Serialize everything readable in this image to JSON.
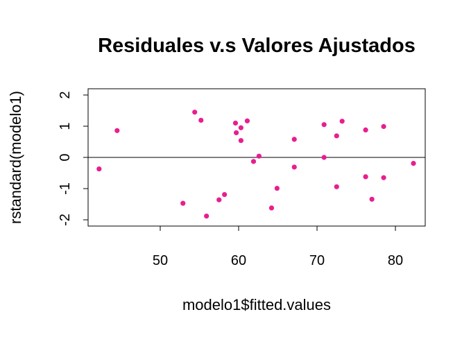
{
  "chart_data": {
    "type": "scatter",
    "title": "Residuales v.s Valores Ajustados",
    "xlabel": "modelo1$fitted.values",
    "ylabel": "rstandard(modelo1)",
    "xlim": [
      40.8,
      83.8
    ],
    "ylim": [
      -2.2,
      2.2
    ],
    "xticks": [
      50,
      60,
      70,
      80
    ],
    "yticks": [
      -2,
      -1,
      0,
      1,
      2
    ],
    "grid": false,
    "legend": "none",
    "reference_line": {
      "y": 0
    },
    "point_color": "#e81e8f",
    "points": [
      {
        "x": 42.2,
        "y": -0.37
      },
      {
        "x": 44.5,
        "y": 0.86
      },
      {
        "x": 52.9,
        "y": -1.47
      },
      {
        "x": 54.4,
        "y": 1.45
      },
      {
        "x": 55.2,
        "y": 1.19
      },
      {
        "x": 55.9,
        "y": -1.88
      },
      {
        "x": 57.5,
        "y": -1.36
      },
      {
        "x": 58.2,
        "y": -1.19
      },
      {
        "x": 59.6,
        "y": 1.1
      },
      {
        "x": 59.7,
        "y": 0.79
      },
      {
        "x": 60.3,
        "y": 0.95
      },
      {
        "x": 60.3,
        "y": 0.54
      },
      {
        "x": 61.1,
        "y": 1.17
      },
      {
        "x": 61.9,
        "y": -0.13
      },
      {
        "x": 62.6,
        "y": 0.04
      },
      {
        "x": 64.2,
        "y": -1.62
      },
      {
        "x": 64.9,
        "y": -0.99
      },
      {
        "x": 67.1,
        "y": 0.58
      },
      {
        "x": 67.1,
        "y": -0.31
      },
      {
        "x": 70.9,
        "y": 1.05
      },
      {
        "x": 70.9,
        "y": 0.0
      },
      {
        "x": 72.5,
        "y": 0.69
      },
      {
        "x": 72.5,
        "y": -0.94
      },
      {
        "x": 73.2,
        "y": 1.16
      },
      {
        "x": 76.2,
        "y": 0.88
      },
      {
        "x": 76.2,
        "y": -0.62
      },
      {
        "x": 77.0,
        "y": -1.34
      },
      {
        "x": 78.5,
        "y": 0.99
      },
      {
        "x": 78.5,
        "y": -0.65
      },
      {
        "x": 82.3,
        "y": -0.19
      }
    ]
  }
}
